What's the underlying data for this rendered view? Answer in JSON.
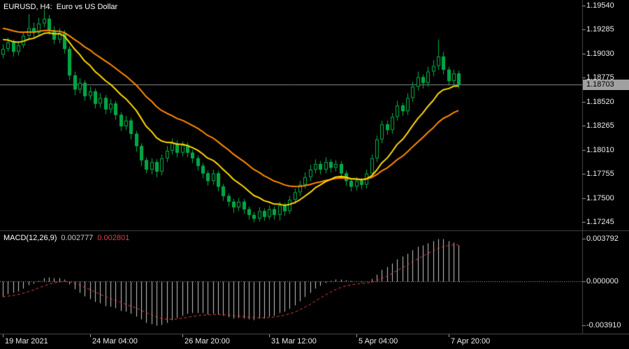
{
  "window": {
    "title": "EURUSD, H4:  Euro vs US Dollar"
  },
  "colors": {
    "background": "#000000",
    "candle_outline": "#00b44a",
    "candle_bear_fill": "#00a344",
    "candle_bull_fill": "#000000",
    "ma_fast": "#ffd800",
    "ma_slow": "#ff8a00",
    "macd_histogram": "#c8c8c8",
    "macd_signal": "#e04040",
    "bid_line": "#8c8c8c",
    "axis_text": "#ececec",
    "separator": "#454545",
    "price_tag_bg": "#a0a0a0",
    "price_tag_text": "#000000"
  },
  "chart_data": {
    "type": "candlestick",
    "symbol": "EURUSD",
    "timeframe": "H4",
    "description": "Euro vs US Dollar",
    "title": "EURUSD, H4:  Euro vs US Dollar",
    "price_axis": {
      "tick_labels": [
        "1.19540",
        "1.19285",
        "1.19030",
        "1.18775",
        "1.18520",
        "1.18265",
        "1.18010",
        "1.17755",
        "1.17500",
        "1.17245"
      ],
      "tick_step": 0.00255,
      "current_price": "1.18703"
    },
    "time_axis": {
      "tick_labels": [
        "19 Mar 2021",
        "24 Mar 04:00",
        "26 Mar 20:00",
        "31 Mar 12:00",
        "5 Apr 04:00",
        "7 Apr 20:00"
      ],
      "tick_candle_indices": [
        0,
        17,
        35,
        52,
        69,
        87
      ]
    },
    "overlays": [
      {
        "name": "ma-fast",
        "type": "ema",
        "period": 12,
        "seed": 1.1918,
        "color": "#ffd800"
      },
      {
        "name": "ma-slow",
        "type": "ema",
        "period": 26,
        "seed": 1.193,
        "color": "#ff8a00"
      }
    ],
    "macd": {
      "label": "MACD(12,26,9)",
      "fast_period": 12,
      "slow_period": 26,
      "signal_period": 9,
      "main_value": "0.002777",
      "signal_value": "0.002801",
      "axis_tick_labels": [
        "0.003792",
        "0.000000",
        "-0.003910"
      ],
      "fast_seed": 1.19,
      "slow_seed": 1.1911
    },
    "candles": [
      [
        1.1902,
        1.1913,
        1.1898,
        1.1908
      ],
      [
        1.1908,
        1.192,
        1.1905,
        1.1915
      ],
      [
        1.1915,
        1.1918,
        1.19,
        1.1905
      ],
      [
        1.1905,
        1.1916,
        1.1901,
        1.1912
      ],
      [
        1.1912,
        1.1926,
        1.1909,
        1.1922
      ],
      [
        1.1922,
        1.1945,
        1.1919,
        1.193
      ],
      [
        1.193,
        1.1936,
        1.192,
        1.1925
      ],
      [
        1.1925,
        1.1941,
        1.1922,
        1.1935
      ],
      [
        1.1935,
        1.195,
        1.1931,
        1.194
      ],
      [
        1.194,
        1.1944,
        1.1923,
        1.1928
      ],
      [
        1.1928,
        1.1932,
        1.1913,
        1.1918
      ],
      [
        1.1918,
        1.193,
        1.1914,
        1.1925
      ],
      [
        1.1925,
        1.1928,
        1.1903,
        1.1908
      ],
      [
        1.1908,
        1.1911,
        1.1875,
        1.188
      ],
      [
        1.188,
        1.1884,
        1.1859,
        1.1865
      ],
      [
        1.1865,
        1.1877,
        1.1861,
        1.1872
      ],
      [
        1.1872,
        1.1875,
        1.1853,
        1.1858
      ],
      [
        1.1858,
        1.1868,
        1.1854,
        1.1863
      ],
      [
        1.1863,
        1.1866,
        1.1845,
        1.185
      ],
      [
        1.185,
        1.1861,
        1.1846,
        1.1856
      ],
      [
        1.1856,
        1.1859,
        1.1839,
        1.1844
      ],
      [
        1.1844,
        1.1855,
        1.184,
        1.185
      ],
      [
        1.185,
        1.1853,
        1.1833,
        1.1838
      ],
      [
        1.1838,
        1.1841,
        1.1821,
        1.1826
      ],
      [
        1.1826,
        1.1837,
        1.1822,
        1.1832
      ],
      [
        1.1832,
        1.1835,
        1.1812,
        1.1818
      ],
      [
        1.1818,
        1.1821,
        1.1799,
        1.1805
      ],
      [
        1.1805,
        1.1808,
        1.1784,
        1.179
      ],
      [
        1.179,
        1.1793,
        1.1776,
        1.178
      ],
      [
        1.178,
        1.1792,
        1.1775,
        1.1788
      ],
      [
        1.1788,
        1.1791,
        1.1772,
        1.1778
      ],
      [
        1.1778,
        1.1796,
        1.1774,
        1.1792
      ],
      [
        1.1792,
        1.1805,
        1.1788,
        1.18
      ],
      [
        1.18,
        1.1813,
        1.1796,
        1.1808
      ],
      [
        1.1808,
        1.1811,
        1.1793,
        1.1798
      ],
      [
        1.1798,
        1.181,
        1.1794,
        1.1806
      ],
      [
        1.1806,
        1.1809,
        1.1793,
        1.1798
      ],
      [
        1.1798,
        1.1801,
        1.1787,
        1.1792
      ],
      [
        1.1792,
        1.1795,
        1.1779,
        1.1784
      ],
      [
        1.1784,
        1.1787,
        1.1771,
        1.1776
      ],
      [
        1.1776,
        1.1779,
        1.1763,
        1.1768
      ],
      [
        1.1768,
        1.178,
        1.1764,
        1.1776
      ],
      [
        1.1776,
        1.1779,
        1.1757,
        1.1762
      ],
      [
        1.1762,
        1.1765,
        1.1747,
        1.1752
      ],
      [
        1.1752,
        1.1755,
        1.1741,
        1.1746
      ],
      [
        1.1746,
        1.1749,
        1.1734,
        1.174
      ],
      [
        1.174,
        1.175,
        1.1736,
        1.1746
      ],
      [
        1.1746,
        1.1749,
        1.1733,
        1.1738
      ],
      [
        1.1738,
        1.1741,
        1.1727,
        1.1732
      ],
      [
        1.1732,
        1.1735,
        1.1724,
        1.1728
      ],
      [
        1.1728,
        1.174,
        1.1725,
        1.1736
      ],
      [
        1.1736,
        1.1739,
        1.1726,
        1.173
      ],
      [
        1.173,
        1.1742,
        1.1727,
        1.1738
      ],
      [
        1.1738,
        1.1741,
        1.1727,
        1.1732
      ],
      [
        1.1732,
        1.1746,
        1.1726,
        1.1742
      ],
      [
        1.1742,
        1.1745,
        1.1731,
        1.1736
      ],
      [
        1.1736,
        1.1752,
        1.1733,
        1.1748
      ],
      [
        1.1748,
        1.176,
        1.1744,
        1.1756
      ],
      [
        1.1756,
        1.1768,
        1.1752,
        1.1764
      ],
      [
        1.1764,
        1.1777,
        1.176,
        1.1772
      ],
      [
        1.1772,
        1.1785,
        1.1768,
        1.178
      ],
      [
        1.178,
        1.1791,
        1.1776,
        1.1786
      ],
      [
        1.1786,
        1.1789,
        1.1775,
        1.178
      ],
      [
        1.178,
        1.1793,
        1.1776,
        1.1788
      ],
      [
        1.1788,
        1.1791,
        1.1777,
        1.1782
      ],
      [
        1.1782,
        1.179,
        1.1778,
        1.1786
      ],
      [
        1.1786,
        1.1789,
        1.1771,
        1.1776
      ],
      [
        1.1776,
        1.1779,
        1.1763,
        1.1768
      ],
      [
        1.1768,
        1.1771,
        1.1757,
        1.1762
      ],
      [
        1.1762,
        1.1772,
        1.1758,
        1.1768
      ],
      [
        1.1768,
        1.1771,
        1.1759,
        1.1764
      ],
      [
        1.1764,
        1.178,
        1.176,
        1.1776
      ],
      [
        1.1776,
        1.1796,
        1.1772,
        1.1792
      ],
      [
        1.1792,
        1.1816,
        1.1788,
        1.1812
      ],
      [
        1.1812,
        1.1832,
        1.1808,
        1.1828
      ],
      [
        1.1828,
        1.1832,
        1.1817,
        1.1822
      ],
      [
        1.1822,
        1.184,
        1.1818,
        1.1836
      ],
      [
        1.1836,
        1.1853,
        1.1832,
        1.1848
      ],
      [
        1.1848,
        1.1851,
        1.1837,
        1.1842
      ],
      [
        1.1842,
        1.1861,
        1.1838,
        1.1856
      ],
      [
        1.1856,
        1.1873,
        1.1852,
        1.1868
      ],
      [
        1.1868,
        1.1884,
        1.1864,
        1.1878
      ],
      [
        1.1878,
        1.1881,
        1.1866,
        1.1872
      ],
      [
        1.1872,
        1.1889,
        1.1868,
        1.1884
      ],
      [
        1.1884,
        1.1896,
        1.1879,
        1.189
      ],
      [
        1.189,
        1.1918,
        1.1886,
        1.19
      ],
      [
        1.19,
        1.1905,
        1.1881,
        1.1886
      ],
      [
        1.1886,
        1.1889,
        1.1869,
        1.1874
      ],
      [
        1.1874,
        1.1886,
        1.187,
        1.1882
      ],
      [
        1.1882,
        1.1885,
        1.1866,
        1.18703
      ]
    ]
  }
}
